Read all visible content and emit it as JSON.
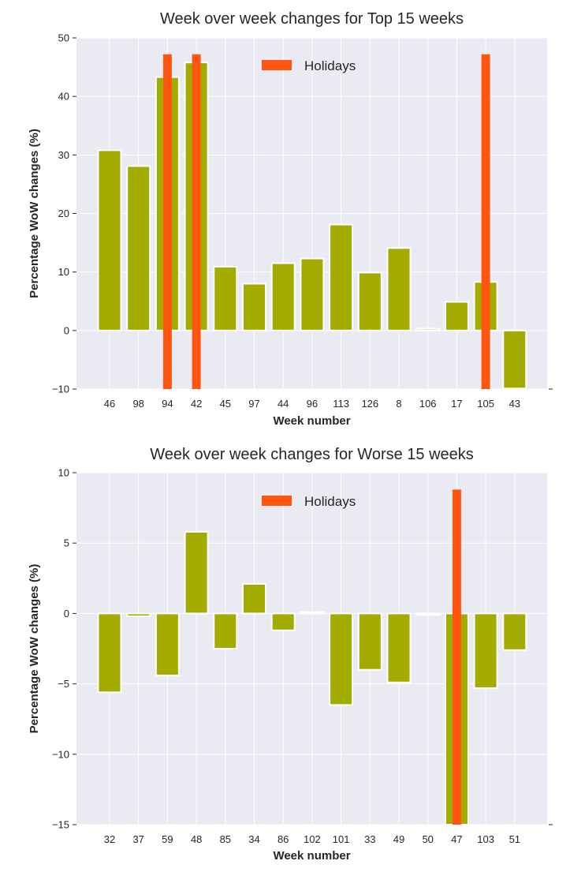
{
  "colors": {
    "bar": "#a2ac00",
    "holiday": "#ff5511",
    "background": "#eaeaf2",
    "grid": "#ffffff"
  },
  "chart_data": [
    {
      "type": "bar",
      "title": "Week over week changes for Top 15 weeks",
      "xlabel": "Week number",
      "ylabel": "Percentage WoW changes (%)",
      "ylim": [
        -10,
        50
      ],
      "yticks": [
        -10,
        0,
        10,
        20,
        30,
        40,
        50
      ],
      "ytick_labels": [
        "−10",
        "0",
        "10",
        "20",
        "30",
        "40",
        "50"
      ],
      "grid": true,
      "legend": {
        "position": "top-center",
        "entries": [
          "Holidays"
        ]
      },
      "categories": [
        "46",
        "98",
        "94",
        "42",
        "45",
        "97",
        "44",
        "96",
        "113",
        "126",
        "8",
        "106",
        "17",
        "105",
        "43"
      ],
      "series": [
        {
          "values": [
            30.8,
            28.1,
            43.3,
            45.8,
            10.9,
            8.0,
            11.5,
            12.3,
            18.1,
            9.9,
            14.1,
            0.3,
            4.9,
            8.3,
            -9.9
          ]
        },
        {
          "name": "Holidays",
          "values": [
            null,
            null,
            47.2,
            47.2,
            null,
            null,
            null,
            null,
            null,
            null,
            null,
            null,
            null,
            47.2,
            null
          ]
        }
      ]
    },
    {
      "type": "bar",
      "title": "Week over week changes for Worse 15 weeks",
      "xlabel": "Week number",
      "ylabel": "Percentage WoW changes (%)",
      "ylim": [
        -15,
        10
      ],
      "yticks": [
        -15,
        -10,
        -5,
        0,
        5,
        10
      ],
      "ytick_labels": [
        "−15",
        "−10",
        "−5",
        "0",
        "5",
        "10"
      ],
      "grid": true,
      "legend": {
        "position": "top-center",
        "entries": [
          "Holidays"
        ]
      },
      "categories": [
        "32",
        "37",
        "59",
        "48",
        "85",
        "34",
        "86",
        "102",
        "101",
        "33",
        "49",
        "50",
        "47",
        "103",
        "51"
      ],
      "series": [
        {
          "values": [
            -5.6,
            -0.2,
            -4.4,
            5.8,
            -2.5,
            2.1,
            -1.2,
            0.1,
            -6.5,
            -4.0,
            -4.9,
            -0.1,
            -15.0,
            -5.3,
            -2.6
          ]
        },
        {
          "name": "Holidays",
          "values": [
            null,
            null,
            null,
            null,
            null,
            null,
            null,
            null,
            null,
            null,
            null,
            null,
            8.8,
            null,
            null
          ]
        }
      ]
    }
  ]
}
